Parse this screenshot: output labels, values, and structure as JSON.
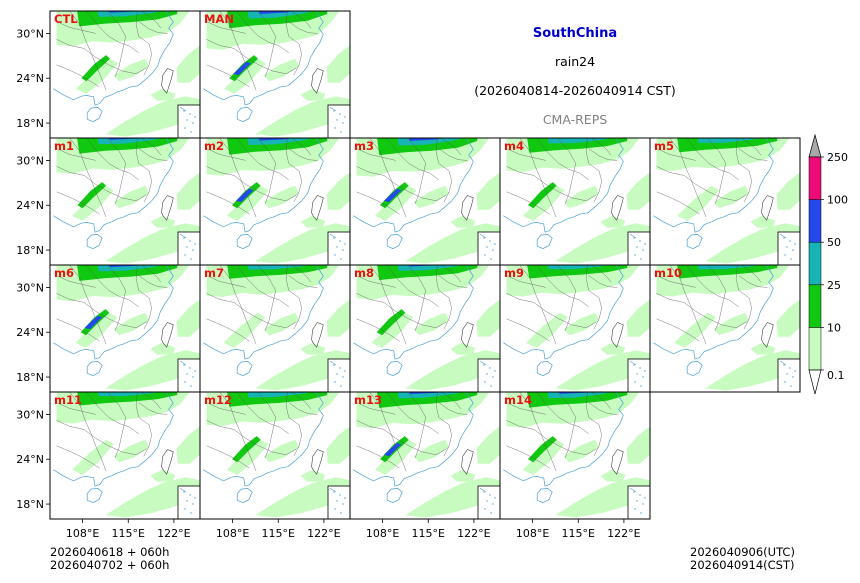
{
  "header": {
    "region": "SouthChina",
    "variable": "rain24",
    "period": "(2026040814-2026040914 CST)",
    "model": "CMA-REPS"
  },
  "footer": {
    "left_line1": "2026040618  +  060h",
    "left_line2": "2026040702  +  060h",
    "right_line1": "2026040906(UTC)",
    "right_line2": "2026040914(CST)"
  },
  "colors": {
    "c0_1": "#c8fbc0",
    "c10": "#10c810",
    "c25": "#16b4b4",
    "c50": "#2448ee",
    "c100": "#ee0a78",
    "c250": "#a8a8a8",
    "coast": "#4a9fd8",
    "panel_label": "#ee1010"
  },
  "chart_data": {
    "type": "heatmap",
    "title": "SouthChina rain24 (2026040814-2026040914 CST) CMA-REPS",
    "panels": [
      "CTL",
      "MAN",
      "m1",
      "m2",
      "m3",
      "m4",
      "m5",
      "m6",
      "m7",
      "m8",
      "m9",
      "m10",
      "m11",
      "m12",
      "m13",
      "m14"
    ],
    "x_ticks": [
      "108°E",
      "115°E",
      "122°E"
    ],
    "y_ticks": [
      "30°N",
      "24°N",
      "18°N"
    ],
    "lon_range": [
      103,
      126
    ],
    "lat_range": [
      16,
      33
    ],
    "colorbar": {
      "levels": [
        0.1,
        10,
        25,
        50,
        100,
        250
      ],
      "labels": [
        "0.1",
        "10",
        "25",
        "50",
        "100",
        "250"
      ],
      "extend": "both"
    },
    "panel_intensity": {
      "CTL": 0.65,
      "MAN": 1.0,
      "m1": 0.7,
      "m2": 0.9,
      "m3": 1.0,
      "m4": 0.55,
      "m5": 0.45,
      "m6": 0.75,
      "m7": 0.35,
      "m8": 0.6,
      "m9": 0.3,
      "m10": 0.3,
      "m11": 0.3,
      "m12": 0.55,
      "m13": 0.75,
      "m14": 0.7
    }
  }
}
